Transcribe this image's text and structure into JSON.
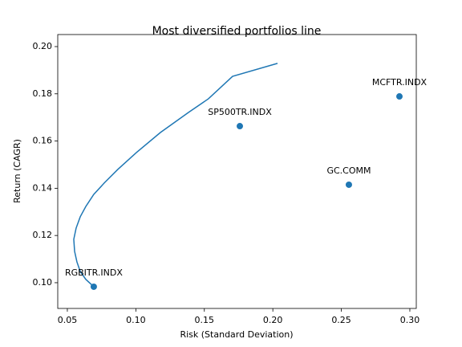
{
  "chart_data": {
    "type": "line",
    "title": "Most diversified portfolios line",
    "xlabel": "Risk (Standard Deviation)",
    "ylabel": "Return (CAGR)",
    "x": [
      0.0693,
      0.0635,
      0.0594,
      0.057,
      0.0553,
      0.0547,
      0.0564,
      0.0594,
      0.0635,
      0.0693,
      0.0769,
      0.0869,
      0.1004,
      0.1179,
      0.1384,
      0.153,
      0.1706,
      0.2034
    ],
    "series": [
      {
        "color": "#1f77b4",
        "values": [
          0.0983,
          0.1014,
          0.1048,
          0.1088,
          0.1133,
          0.1184,
          0.1231,
          0.1279,
          0.1323,
          0.1374,
          0.1422,
          0.148,
          0.1551,
          0.1636,
          0.1721,
          0.1779,
          0.1874,
          0.1929
        ]
      }
    ],
    "points": {
      "color": "#1f77b4",
      "labels": [
        "RGBITR.INDX",
        "SP500TR.INDX",
        "GC.COMM",
        "MCFTR.INDX"
      ],
      "x": [
        0.0693,
        0.1759,
        0.2555,
        0.2924
      ],
      "y": [
        0.0983,
        0.1663,
        0.1415,
        0.1789
      ]
    },
    "xlim": [
      0.043,
      0.3047
    ],
    "ylim": [
      0.0891,
      0.2051
    ],
    "xticks": [
      0.05,
      {
        "value": 0.1,
        "label": "0.10"
      },
      0.15,
      {
        "value": 0.2,
        "label": "0.20"
      },
      0.25,
      {
        "value": 0.3,
        "label": "0.30"
      }
    ],
    "yticks": [
      {
        "value": 0.1,
        "label": "0.10"
      },
      0.12,
      0.14,
      0.16,
      0.18,
      {
        "value": 0.2,
        "label": "0.20"
      }
    ]
  }
}
